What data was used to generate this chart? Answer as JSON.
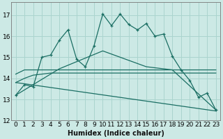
{
  "xlabel": "Humidex (Indice chaleur)",
  "bg_color": "#cce9e5",
  "line_color": "#1a6e63",
  "grid_color": "#aad4ce",
  "xlim": [
    -0.5,
    23.5
  ],
  "ylim": [
    12,
    17.6
  ],
  "yticks": [
    12,
    13,
    14,
    15,
    16,
    17
  ],
  "xticks": [
    0,
    1,
    2,
    3,
    4,
    5,
    6,
    7,
    8,
    9,
    10,
    11,
    12,
    13,
    14,
    15,
    16,
    17,
    18,
    19,
    20,
    21,
    22,
    23
  ],
  "series1_x": [
    0,
    1,
    2,
    3,
    4,
    5,
    6,
    7,
    8,
    9,
    10,
    11,
    12,
    13,
    14,
    15,
    16,
    17,
    18,
    19,
    20,
    21,
    22,
    23
  ],
  "series1_y": [
    13.2,
    13.7,
    13.6,
    15.0,
    15.1,
    15.8,
    16.3,
    14.9,
    14.55,
    15.55,
    17.05,
    16.5,
    17.05,
    16.55,
    16.3,
    16.6,
    16.0,
    16.1,
    15.05,
    14.4,
    13.9,
    13.1,
    13.3,
    12.5
  ],
  "series2_x": [
    0,
    1,
    2,
    3,
    4,
    5,
    6,
    7,
    8,
    9,
    10,
    11,
    12,
    13,
    14,
    15,
    16,
    17,
    18,
    19,
    20,
    21,
    22,
    23
  ],
  "series2_y": [
    14.2,
    14.4,
    14.4,
    14.4,
    14.4,
    14.4,
    14.4,
    14.4,
    14.4,
    14.4,
    14.4,
    14.4,
    14.4,
    14.4,
    14.4,
    14.4,
    14.4,
    14.4,
    14.4,
    14.4,
    14.4,
    14.4,
    14.4,
    14.4
  ],
  "series3_x": [
    0,
    1,
    2,
    3,
    4,
    5,
    6,
    7,
    8,
    9,
    10,
    11,
    12,
    13,
    14,
    15,
    16,
    17,
    18,
    19,
    20,
    21,
    22,
    23
  ],
  "series3_y": [
    13.8,
    14.0,
    14.15,
    14.2,
    14.25,
    14.25,
    14.25,
    14.25,
    14.25,
    14.25,
    14.25,
    14.25,
    14.25,
    14.25,
    14.25,
    14.25,
    14.25,
    14.25,
    14.25,
    14.25,
    14.25,
    14.25,
    14.25,
    14.25
  ],
  "series4_x": [
    0,
    5,
    10,
    15,
    18,
    23
  ],
  "series4_y": [
    13.2,
    14.45,
    15.3,
    14.55,
    14.4,
    12.5
  ],
  "series5_x": [
    0,
    23
  ],
  "series5_y": [
    13.8,
    12.45
  ]
}
